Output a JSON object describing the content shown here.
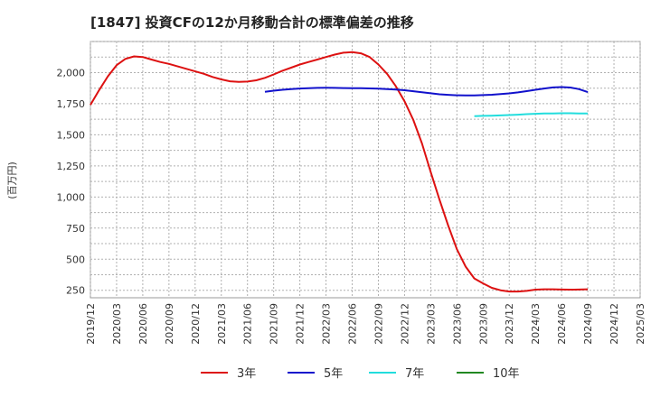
{
  "chart_data": {
    "type": "line",
    "title": "[1847]  投資CFの12か月移動合計の標準偏差の推移",
    "ylabel": "(百万円)",
    "xlabel": "",
    "x_tick_labels": [
      "2019/12",
      "2020/03",
      "2020/06",
      "2020/09",
      "2020/12",
      "2021/03",
      "2021/06",
      "2021/09",
      "2021/12",
      "2022/03",
      "2022/06",
      "2022/09",
      "2022/12",
      "2023/03",
      "2023/06",
      "2023/09",
      "2023/12",
      "2024/03",
      "2024/06",
      "2024/09",
      "2024/12",
      "2025/03"
    ],
    "y_ticks": [
      250,
      500,
      750,
      1000,
      1250,
      1500,
      1750,
      2000
    ],
    "y_tick_labels": [
      "250",
      "500",
      "750",
      "1,000",
      "1,250",
      "1,500",
      "1,750",
      "2,000"
    ],
    "ylim": [
      190,
      2250
    ],
    "grid": true,
    "legend_position": "bottom",
    "series": [
      {
        "name": "3年",
        "color": "#dd1111",
        "x": [
          "2019/12",
          "2020/01",
          "2020/02",
          "2020/03",
          "2020/04",
          "2020/05",
          "2020/06",
          "2020/07",
          "2020/08",
          "2020/09",
          "2020/10",
          "2020/11",
          "2020/12",
          "2021/01",
          "2021/02",
          "2021/03",
          "2021/04",
          "2021/05",
          "2021/06",
          "2021/07",
          "2021/08",
          "2021/09",
          "2021/10",
          "2021/11",
          "2021/12",
          "2022/01",
          "2022/02",
          "2022/03",
          "2022/04",
          "2022/05",
          "2022/06",
          "2022/07",
          "2022/08",
          "2022/09",
          "2022/10",
          "2022/11",
          "2022/12",
          "2023/01",
          "2023/02",
          "2023/03",
          "2023/04",
          "2023/05",
          "2023/06",
          "2023/07",
          "2023/08",
          "2023/09",
          "2023/10",
          "2023/11",
          "2023/12",
          "2024/01",
          "2024/02",
          "2024/03",
          "2024/04",
          "2024/05",
          "2024/06",
          "2024/07",
          "2024/08",
          "2024/09"
        ],
        "values": [
          1740,
          1860,
          1970,
          2060,
          2110,
          2130,
          2125,
          2105,
          2085,
          2070,
          2050,
          2030,
          2010,
          1990,
          1965,
          1945,
          1930,
          1925,
          1928,
          1938,
          1958,
          1985,
          2015,
          2040,
          2065,
          2085,
          2105,
          2125,
          2145,
          2160,
          2165,
          2155,
          2125,
          2065,
          1990,
          1890,
          1770,
          1620,
          1430,
          1200,
          980,
          770,
          580,
          440,
          345,
          305,
          270,
          250,
          240,
          240,
          245,
          255,
          258,
          258,
          256,
          255,
          256,
          258
        ]
      },
      {
        "name": "5年",
        "color": "#1111cc",
        "x": [
          "2021/08",
          "2021/09",
          "2021/10",
          "2021/11",
          "2021/12",
          "2022/01",
          "2022/02",
          "2022/03",
          "2022/04",
          "2022/05",
          "2022/06",
          "2022/07",
          "2022/08",
          "2022/09",
          "2022/10",
          "2022/11",
          "2022/12",
          "2023/01",
          "2023/02",
          "2023/03",
          "2023/04",
          "2023/05",
          "2023/06",
          "2023/07",
          "2023/08",
          "2023/09",
          "2023/10",
          "2023/11",
          "2023/12",
          "2024/01",
          "2024/02",
          "2024/03",
          "2024/04",
          "2024/05",
          "2024/06",
          "2024/07",
          "2024/08",
          "2024/09"
        ],
        "values": [
          1845,
          1855,
          1862,
          1868,
          1872,
          1875,
          1877,
          1878,
          1877,
          1876,
          1875,
          1874,
          1873,
          1871,
          1868,
          1864,
          1858,
          1850,
          1842,
          1834,
          1826,
          1821,
          1818,
          1817,
          1817,
          1819,
          1822,
          1827,
          1833,
          1841,
          1851,
          1862,
          1872,
          1881,
          1884,
          1880,
          1867,
          1843
        ]
      },
      {
        "name": "7年",
        "color": "#22dddd",
        "x": [
          "2023/08",
          "2023/09",
          "2023/10",
          "2023/11",
          "2023/12",
          "2024/01",
          "2024/02",
          "2024/03",
          "2024/04",
          "2024/05",
          "2024/06",
          "2024/07",
          "2024/08",
          "2024/09"
        ],
        "values": [
          1650,
          1652,
          1654,
          1656,
          1659,
          1662,
          1666,
          1669,
          1671,
          1672,
          1673,
          1673,
          1672,
          1671
        ]
      },
      {
        "name": "10年",
        "color": "#228822",
        "x": [],
        "values": []
      }
    ]
  }
}
